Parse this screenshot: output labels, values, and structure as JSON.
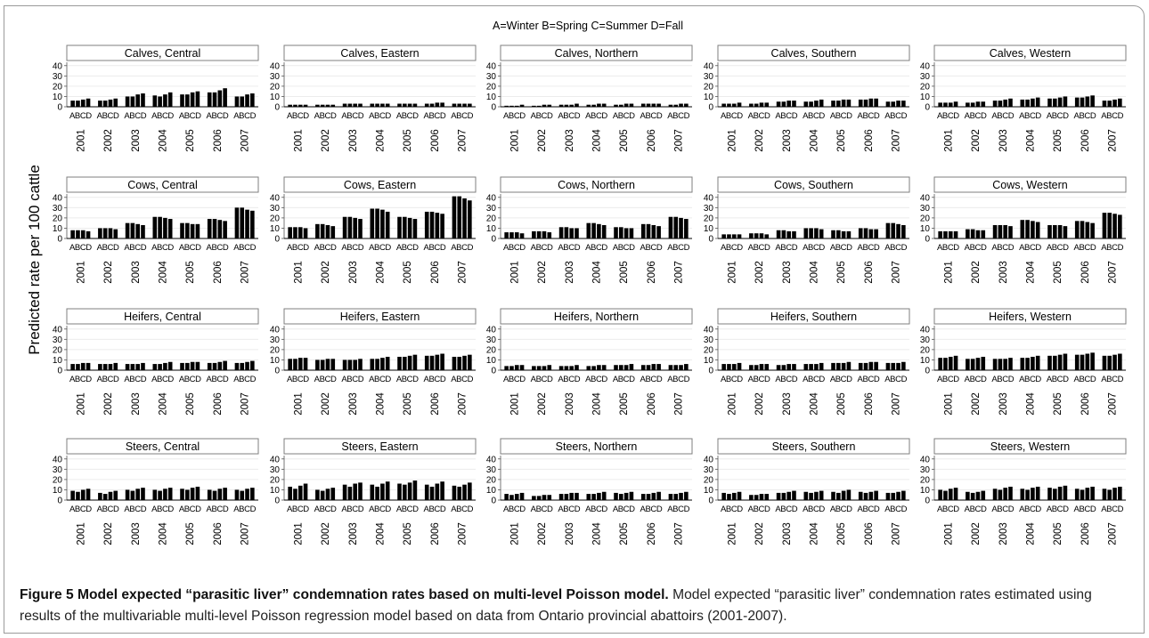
{
  "header_label": "A=Winter B=Spring C=Summer D=Fall",
  "ylabel": "Predicted rate per 100 cattle",
  "caption": {
    "title": "Figure 5 Model expected “parasitic liver” condemnation rates based on multi-level Poisson model.",
    "text": "Model expected “parasitic liver” condemnation rates estimated using results of the multivariable multi-level Poisson regression model based on data from Ontario provincial abattoirs (2001-2007)."
  },
  "chart_data": {
    "type": "bar",
    "facet_rows": [
      "Calves",
      "Cows",
      "Heifers",
      "Steers"
    ],
    "facet_cols": [
      "Central",
      "Eastern",
      "Northern",
      "Southern",
      "Western"
    ],
    "years": [
      "2001",
      "2002",
      "2003",
      "2004",
      "2005",
      "2006",
      "2007"
    ],
    "season_labels": "ABCD",
    "seasons": [
      "Winter",
      "Spring",
      "Summer",
      "Fall"
    ],
    "ylim": [
      0,
      45
    ],
    "yticks": [
      0,
      10,
      20,
      30,
      40
    ],
    "panels": [
      {
        "title": "Calves, Central",
        "values": [
          [
            6,
            6,
            7,
            8
          ],
          [
            6,
            6,
            7,
            8
          ],
          [
            10,
            10,
            12,
            13
          ],
          [
            11,
            10,
            12,
            14
          ],
          [
            12,
            12,
            14,
            15
          ],
          [
            14,
            14,
            16,
            18
          ],
          [
            10,
            10,
            12,
            13
          ]
        ]
      },
      {
        "title": "Calves, Eastern",
        "values": [
          [
            2,
            2,
            2,
            2
          ],
          [
            2,
            2,
            2,
            2
          ],
          [
            3,
            3,
            3,
            3
          ],
          [
            3,
            3,
            3,
            3
          ],
          [
            3,
            3,
            3,
            3
          ],
          [
            3,
            3,
            4,
            4
          ],
          [
            3,
            3,
            3,
            3
          ]
        ]
      },
      {
        "title": "Calves, Northern",
        "values": [
          [
            1,
            1,
            1,
            2
          ],
          [
            1,
            1,
            2,
            2
          ],
          [
            2,
            2,
            2,
            3
          ],
          [
            2,
            2,
            3,
            3
          ],
          [
            2,
            2,
            3,
            3
          ],
          [
            3,
            3,
            3,
            3
          ],
          [
            2,
            2,
            3,
            3
          ]
        ]
      },
      {
        "title": "Calves, Southern",
        "values": [
          [
            3,
            3,
            3,
            4
          ],
          [
            3,
            3,
            4,
            4
          ],
          [
            5,
            5,
            6,
            6
          ],
          [
            5,
            5,
            6,
            7
          ],
          [
            6,
            6,
            7,
            7
          ],
          [
            7,
            7,
            8,
            8
          ],
          [
            5,
            5,
            6,
            6
          ]
        ]
      },
      {
        "title": "Calves, Western",
        "values": [
          [
            4,
            4,
            4,
            5
          ],
          [
            4,
            4,
            5,
            5
          ],
          [
            6,
            6,
            7,
            8
          ],
          [
            7,
            7,
            8,
            9
          ],
          [
            8,
            8,
            9,
            10
          ],
          [
            9,
            9,
            10,
            11
          ],
          [
            6,
            6,
            7,
            8
          ]
        ]
      },
      {
        "title": "Cows, Central",
        "values": [
          [
            8,
            8,
            8,
            7
          ],
          [
            10,
            10,
            10,
            9
          ],
          [
            15,
            15,
            14,
            13
          ],
          [
            21,
            21,
            20,
            19
          ],
          [
            15,
            15,
            14,
            14
          ],
          [
            19,
            19,
            18,
            17
          ],
          [
            30,
            30,
            28,
            27
          ]
        ]
      },
      {
        "title": "Cows, Eastern",
        "values": [
          [
            11,
            11,
            11,
            10
          ],
          [
            14,
            14,
            13,
            12
          ],
          [
            21,
            21,
            20,
            19
          ],
          [
            29,
            29,
            28,
            26
          ],
          [
            21,
            21,
            20,
            19
          ],
          [
            26,
            26,
            25,
            24
          ],
          [
            41,
            41,
            39,
            37
          ]
        ]
      },
      {
        "title": "Cows, Northern",
        "values": [
          [
            6,
            6,
            6,
            5
          ],
          [
            7,
            7,
            7,
            6
          ],
          [
            11,
            11,
            10,
            10
          ],
          [
            15,
            15,
            14,
            13
          ],
          [
            11,
            11,
            10,
            10
          ],
          [
            14,
            14,
            13,
            12
          ],
          [
            21,
            21,
            20,
            19
          ]
        ]
      },
      {
        "title": "Cows, Southern",
        "values": [
          [
            4,
            4,
            4,
            4
          ],
          [
            5,
            5,
            5,
            4
          ],
          [
            8,
            8,
            7,
            7
          ],
          [
            10,
            10,
            10,
            9
          ],
          [
            8,
            8,
            7,
            7
          ],
          [
            10,
            10,
            9,
            9
          ],
          [
            15,
            15,
            14,
            13
          ]
        ]
      },
      {
        "title": "Cows, Western",
        "values": [
          [
            7,
            7,
            7,
            7
          ],
          [
            9,
            9,
            8,
            8
          ],
          [
            13,
            13,
            13,
            12
          ],
          [
            18,
            18,
            17,
            16
          ],
          [
            13,
            13,
            13,
            12
          ],
          [
            17,
            17,
            16,
            15
          ],
          [
            25,
            25,
            24,
            23
          ]
        ]
      },
      {
        "title": "Heifers, Central",
        "values": [
          [
            6,
            6,
            7,
            7
          ],
          [
            6,
            6,
            6,
            7
          ],
          [
            6,
            6,
            6,
            7
          ],
          [
            6,
            6,
            7,
            8
          ],
          [
            7,
            7,
            8,
            8
          ],
          [
            7,
            7,
            8,
            9
          ],
          [
            7,
            7,
            8,
            9
          ]
        ]
      },
      {
        "title": "Heifers, Eastern",
        "values": [
          [
            11,
            11,
            12,
            12
          ],
          [
            10,
            10,
            11,
            11
          ],
          [
            10,
            10,
            10,
            11
          ],
          [
            11,
            11,
            12,
            13
          ],
          [
            13,
            13,
            14,
            15
          ],
          [
            14,
            14,
            15,
            16
          ],
          [
            13,
            13,
            14,
            15
          ]
        ]
      },
      {
        "title": "Heifers, Northern",
        "values": [
          [
            4,
            4,
            5,
            5
          ],
          [
            4,
            4,
            4,
            5
          ],
          [
            4,
            4,
            4,
            5
          ],
          [
            4,
            4,
            5,
            5
          ],
          [
            5,
            5,
            5,
            6
          ],
          [
            5,
            5,
            6,
            6
          ],
          [
            5,
            5,
            5,
            6
          ]
        ]
      },
      {
        "title": "Heifers, Southern",
        "values": [
          [
            6,
            6,
            6,
            7
          ],
          [
            5,
            5,
            6,
            6
          ],
          [
            5,
            5,
            6,
            6
          ],
          [
            6,
            6,
            6,
            7
          ],
          [
            7,
            7,
            7,
            8
          ],
          [
            7,
            7,
            8,
            8
          ],
          [
            7,
            7,
            7,
            8
          ]
        ]
      },
      {
        "title": "Heifers, Western",
        "values": [
          [
            12,
            12,
            13,
            14
          ],
          [
            11,
            11,
            12,
            13
          ],
          [
            11,
            11,
            11,
            12
          ],
          [
            12,
            12,
            13,
            14
          ],
          [
            14,
            14,
            15,
            16
          ],
          [
            15,
            15,
            16,
            17
          ],
          [
            14,
            14,
            15,
            16
          ]
        ]
      },
      {
        "title": "Steers, Central",
        "values": [
          [
            9,
            8,
            10,
            11
          ],
          [
            7,
            6,
            8,
            9
          ],
          [
            10,
            9,
            11,
            12
          ],
          [
            10,
            9,
            11,
            12
          ],
          [
            11,
            10,
            12,
            13
          ],
          [
            10,
            9,
            11,
            12
          ],
          [
            10,
            9,
            11,
            12
          ]
        ]
      },
      {
        "title": "Steers, Eastern",
        "values": [
          [
            13,
            11,
            14,
            16
          ],
          [
            10,
            9,
            11,
            12
          ],
          [
            15,
            13,
            16,
            17
          ],
          [
            15,
            13,
            16,
            18
          ],
          [
            16,
            15,
            17,
            19
          ],
          [
            15,
            13,
            16,
            18
          ],
          [
            14,
            13,
            15,
            17
          ]
        ]
      },
      {
        "title": "Steers, Northern",
        "values": [
          [
            6,
            5,
            6,
            7
          ],
          [
            4,
            4,
            5,
            5
          ],
          [
            6,
            6,
            7,
            7
          ],
          [
            6,
            6,
            7,
            8
          ],
          [
            7,
            6,
            7,
            8
          ],
          [
            6,
            6,
            7,
            8
          ],
          [
            6,
            6,
            7,
            8
          ]
        ]
      },
      {
        "title": "Steers, Southern",
        "values": [
          [
            7,
            6,
            7,
            8
          ],
          [
            5,
            5,
            6,
            6
          ],
          [
            7,
            7,
            8,
            9
          ],
          [
            8,
            7,
            8,
            9
          ],
          [
            8,
            7,
            9,
            10
          ],
          [
            8,
            7,
            8,
            9
          ],
          [
            7,
            7,
            8,
            9
          ]
        ]
      },
      {
        "title": "Steers, Western",
        "values": [
          [
            10,
            9,
            11,
            12
          ],
          [
            8,
            7,
            8,
            9
          ],
          [
            11,
            10,
            12,
            13
          ],
          [
            11,
            10,
            12,
            13
          ],
          [
            12,
            11,
            13,
            14
          ],
          [
            11,
            10,
            12,
            13
          ],
          [
            11,
            10,
            12,
            13
          ]
        ]
      }
    ]
  }
}
